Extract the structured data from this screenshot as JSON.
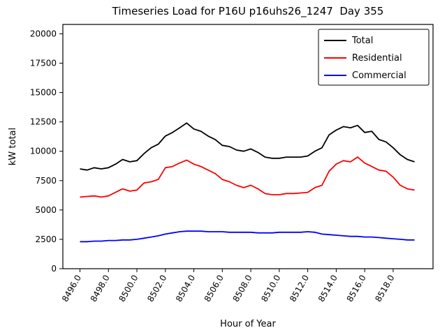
{
  "chart_data": {
    "type": "line",
    "title": "Timeseries Load for P16U p16uhs26_1247  Day 355",
    "xlabel": "Hour of Year",
    "ylabel": "kW total",
    "xlim": [
      8494.8,
      8520.8
    ],
    "ylim": [
      0,
      20800
    ],
    "grid": false,
    "legend_position": "upper right",
    "xticks": [
      8496,
      8498,
      8500,
      8502,
      8504,
      8506,
      8508,
      8510,
      8512,
      8514,
      8516,
      8518
    ],
    "xtick_labels": [
      "8496.0",
      "8498.0",
      "8500.0",
      "8502.0",
      "8504.0",
      "8506.0",
      "8508.0",
      "8510.0",
      "8512.0",
      "8514.0",
      "8516.0",
      "8518.0"
    ],
    "yticks": [
      0,
      2500,
      5000,
      7500,
      10000,
      12500,
      15000,
      17500,
      20000
    ],
    "ytick_labels": [
      "0",
      "2500",
      "5000",
      "7500",
      "10000",
      "12500",
      "15000",
      "17500",
      "20000"
    ],
    "x": [
      8496.0,
      8496.5,
      8497.0,
      8497.5,
      8498.0,
      8498.5,
      8499.0,
      8499.5,
      8500.0,
      8500.5,
      8501.0,
      8501.5,
      8502.0,
      8502.5,
      8503.0,
      8503.5,
      8504.0,
      8504.5,
      8505.0,
      8505.5,
      8506.0,
      8506.5,
      8507.0,
      8507.5,
      8508.0,
      8508.5,
      8509.0,
      8509.5,
      8510.0,
      8510.5,
      8511.0,
      8511.5,
      8512.0,
      8512.5,
      8513.0,
      8513.5,
      8514.0,
      8514.5,
      8515.0,
      8515.5,
      8516.0,
      8516.5,
      8517.0,
      8517.5,
      8518.0,
      8518.5,
      8519.0,
      8519.5
    ],
    "series": [
      {
        "name": "Total",
        "color": "#000000",
        "values": [
          8500,
          8400,
          8600,
          8500,
          8600,
          8900,
          9300,
          9100,
          9200,
          9800,
          10300,
          10600,
          11300,
          11600,
          12000,
          12400,
          11900,
          11700,
          11300,
          11000,
          10500,
          10400,
          10100,
          10000,
          10200,
          9900,
          9500,
          9400,
          9400,
          9500,
          9500,
          9500,
          9600,
          10000,
          10300,
          11400,
          11800,
          12100,
          12000,
          12200,
          11600,
          11700,
          11000,
          10800,
          10300,
          9700,
          9300,
          9100
        ]
      },
      {
        "name": "Residential",
        "color": "#ff0000",
        "values": [
          6100,
          6150,
          6200,
          6100,
          6200,
          6500,
          6800,
          6600,
          6700,
          7300,
          7400,
          7600,
          8600,
          8700,
          9000,
          9250,
          8900,
          8700,
          8400,
          8100,
          7600,
          7400,
          7100,
          6900,
          7100,
          6800,
          6400,
          6300,
          6300,
          6400,
          6400,
          6450,
          6500,
          6900,
          7100,
          8300,
          8900,
          9200,
          9100,
          9500,
          9000,
          8700,
          8400,
          8300,
          7800,
          7100,
          6800,
          6700
        ]
      },
      {
        "name": "Commercial",
        "color": "#0000ff",
        "values": [
          2300,
          2300,
          2350,
          2350,
          2400,
          2400,
          2450,
          2450,
          2500,
          2600,
          2700,
          2800,
          2950,
          3050,
          3150,
          3200,
          3200,
          3200,
          3150,
          3150,
          3150,
          3100,
          3100,
          3100,
          3100,
          3050,
          3050,
          3050,
          3100,
          3100,
          3100,
          3100,
          3150,
          3100,
          2950,
          2900,
          2850,
          2800,
          2750,
          2750,
          2700,
          2700,
          2650,
          2600,
          2550,
          2500,
          2450,
          2450
        ]
      }
    ]
  }
}
